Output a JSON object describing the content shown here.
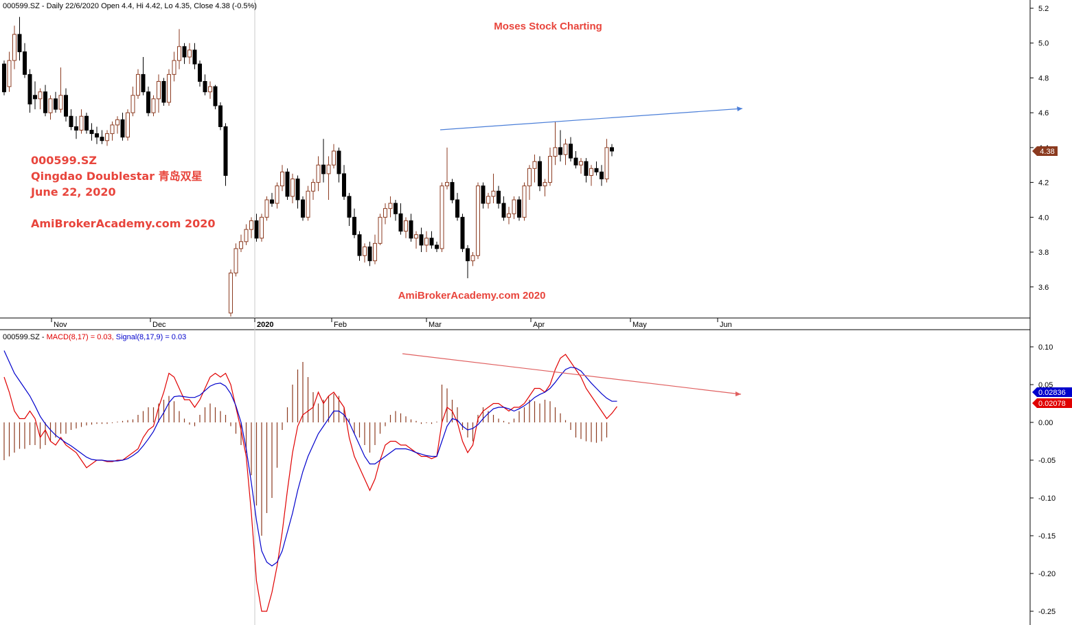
{
  "price_header": "000599.SZ - Daily 22/6/2020 Open 4.4, Hi 4.42, Lo 4.35, Close 4.38 (-0.5%)",
  "macd_header": {
    "prefix": "000599.SZ - ",
    "macd": "MACD(8,17) = 0.03,",
    "signal": "Signal(8,17,9) = 0.03"
  },
  "watermark_top": "Moses Stock Charting",
  "watermark_mid": "AmiBrokerAcademy.com  2020",
  "annotation": {
    "ticker": "000599.SZ",
    "company": "Qingdao Doublestar 青岛双星",
    "date": "June 22, 2020",
    "site": "AmiBrokerAcademy.com  2020"
  },
  "last_price_label": "4.38",
  "macd_value_labels": {
    "signal": "0.02836",
    "macd": "0.02078"
  },
  "colors": {
    "up_candle": "#8b3a1f",
    "down_candle": "#000000",
    "macd_line": "#e00000",
    "signal_line": "#0000cc",
    "histogram": "#8b3a1f",
    "title_red": "#e8453c",
    "trend_blue": "#4a7ed8",
    "trend_red": "#e06060"
  },
  "chart_data": [
    {
      "type": "candlestick",
      "title": "000599.SZ - Daily 22/6/2020",
      "x_ticks": [
        "Nov",
        "Dec",
        "2020",
        "Feb",
        "Mar",
        "Apr",
        "May",
        "Jun"
      ],
      "y_ticks": [
        "3.6",
        "3.8",
        "4.0",
        "4.2",
        "4.4",
        "4.6",
        "4.8",
        "5.0",
        "5.2"
      ],
      "ylim": [
        3.4,
        5.2
      ],
      "last": {
        "open": 4.4,
        "high": 4.42,
        "low": 4.35,
        "close": 4.38,
        "change_pct": -0.5
      },
      "ohlc": [
        [
          4.88,
          4.9,
          4.7,
          4.72
        ],
        [
          4.75,
          4.95,
          4.72,
          4.9
        ],
        [
          4.9,
          5.1,
          4.85,
          5.05
        ],
        [
          5.05,
          5.15,
          4.9,
          4.95
        ],
        [
          4.95,
          5.0,
          4.8,
          4.82
        ],
        [
          4.82,
          4.85,
          4.6,
          4.65
        ],
        [
          4.7,
          4.78,
          4.62,
          4.68
        ],
        [
          4.68,
          4.74,
          4.62,
          4.72
        ],
        [
          4.72,
          4.76,
          4.58,
          4.6
        ],
        [
          4.6,
          4.7,
          4.56,
          4.68
        ],
        [
          4.68,
          4.72,
          4.6,
          4.62
        ],
        [
          4.62,
          4.86,
          4.6,
          4.7
        ],
        [
          4.7,
          4.74,
          4.55,
          4.58
        ],
        [
          4.58,
          4.62,
          4.5,
          4.52
        ],
        [
          4.52,
          4.58,
          4.45,
          4.5
        ],
        [
          4.5,
          4.62,
          4.48,
          4.58
        ],
        [
          4.58,
          4.6,
          4.48,
          4.5
        ],
        [
          4.5,
          4.54,
          4.44,
          4.48
        ],
        [
          4.48,
          4.52,
          4.42,
          4.46
        ],
        [
          4.46,
          4.5,
          4.42,
          4.44
        ],
        [
          4.44,
          4.5,
          4.41,
          4.48
        ],
        [
          4.48,
          4.55,
          4.44,
          4.53
        ],
        [
          4.53,
          4.58,
          4.48,
          4.56
        ],
        [
          4.56,
          4.6,
          4.44,
          4.46
        ],
        [
          4.46,
          4.62,
          4.44,
          4.6
        ],
        [
          4.6,
          4.75,
          4.58,
          4.7
        ],
        [
          4.7,
          4.85,
          4.68,
          4.82
        ],
        [
          4.82,
          4.92,
          4.7,
          4.72
        ],
        [
          4.72,
          4.75,
          4.58,
          4.6
        ],
        [
          4.6,
          4.7,
          4.58,
          4.68
        ],
        [
          4.68,
          4.82,
          4.6,
          4.78
        ],
        [
          4.78,
          4.8,
          4.64,
          4.66
        ],
        [
          4.66,
          4.85,
          4.64,
          4.82
        ],
        [
          4.82,
          4.95,
          4.78,
          4.9
        ],
        [
          4.9,
          5.08,
          4.85,
          4.98
        ],
        [
          4.98,
          5.0,
          4.88,
          4.92
        ],
        [
          4.92,
          5.0,
          4.88,
          4.96
        ],
        [
          4.96,
          5.0,
          4.85,
          4.88
        ],
        [
          4.88,
          4.9,
          4.75,
          4.78
        ],
        [
          4.78,
          4.82,
          4.7,
          4.72
        ],
        [
          4.72,
          4.78,
          4.68,
          4.75
        ],
        [
          4.75,
          4.76,
          4.62,
          4.64
        ],
        [
          4.64,
          4.66,
          4.5,
          4.52
        ],
        [
          4.52,
          4.54,
          4.18,
          4.24
        ],
        [
          3.45,
          3.7,
          3.43,
          3.68
        ],
        [
          3.68,
          3.85,
          3.66,
          3.82
        ],
        [
          3.82,
          3.9,
          3.8,
          3.86
        ],
        [
          3.86,
          3.96,
          3.84,
          3.93
        ],
        [
          3.93,
          4.0,
          3.88,
          3.98
        ],
        [
          3.98,
          4.02,
          3.86,
          3.88
        ],
        [
          3.88,
          4.02,
          3.86,
          4.0
        ],
        [
          4.0,
          4.12,
          3.98,
          4.1
        ],
        [
          4.1,
          4.14,
          4.06,
          4.08
        ],
        [
          4.08,
          4.2,
          4.05,
          4.18
        ],
        [
          4.18,
          4.3,
          4.15,
          4.26
        ],
        [
          4.26,
          4.28,
          4.1,
          4.12
        ],
        [
          4.12,
          4.25,
          4.08,
          4.22
        ],
        [
          4.22,
          4.24,
          4.05,
          4.1
        ],
        [
          4.1,
          4.12,
          3.98,
          4.0
        ],
        [
          4.0,
          4.18,
          3.98,
          4.15
        ],
        [
          4.15,
          4.22,
          4.1,
          4.2
        ],
        [
          4.2,
          4.35,
          4.15,
          4.3
        ],
        [
          4.3,
          4.45,
          4.2,
          4.25
        ],
        [
          4.25,
          4.35,
          4.1,
          4.3
        ],
        [
          4.3,
          4.42,
          4.28,
          4.38
        ],
        [
          4.38,
          4.4,
          4.2,
          4.25
        ],
        [
          4.25,
          4.3,
          4.1,
          4.12
        ],
        [
          4.12,
          4.14,
          3.95,
          4.0
        ],
        [
          4.0,
          4.05,
          3.88,
          3.9
        ],
        [
          3.9,
          3.92,
          3.75,
          3.78
        ],
        [
          3.78,
          3.85,
          3.74,
          3.83
        ],
        [
          3.83,
          3.86,
          3.72,
          3.75
        ],
        [
          3.75,
          3.9,
          3.73,
          3.85
        ],
        [
          3.85,
          4.02,
          3.84,
          4.0
        ],
        [
          4.0,
          4.08,
          3.96,
          4.05
        ],
        [
          4.05,
          4.12,
          4.0,
          4.08
        ],
        [
          4.08,
          4.1,
          3.98,
          4.02
        ],
        [
          4.02,
          4.08,
          3.9,
          3.92
        ],
        [
          3.92,
          4.0,
          3.88,
          3.98
        ],
        [
          3.98,
          4.02,
          3.86,
          3.88
        ],
        [
          3.88,
          3.92,
          3.82,
          3.9
        ],
        [
          3.9,
          3.94,
          3.8,
          3.84
        ],
        [
          3.84,
          3.92,
          3.8,
          3.88
        ],
        [
          3.88,
          3.92,
          3.82,
          3.84
        ],
        [
          3.84,
          3.86,
          3.8,
          3.82
        ],
        [
          3.82,
          4.2,
          3.8,
          4.18
        ],
        [
          4.18,
          4.4,
          4.16,
          4.2
        ],
        [
          4.2,
          4.22,
          4.08,
          4.1
        ],
        [
          4.1,
          4.14,
          3.98,
          4.0
        ],
        [
          4.0,
          4.02,
          3.8,
          3.82
        ],
        [
          3.82,
          3.84,
          3.65,
          3.75
        ],
        [
          3.75,
          3.8,
          3.72,
          3.78
        ],
        [
          3.78,
          4.2,
          3.76,
          4.18
        ],
        [
          4.18,
          4.2,
          4.05,
          4.08
        ],
        [
          4.08,
          4.14,
          4.05,
          4.12
        ],
        [
          4.12,
          4.25,
          4.08,
          4.15
        ],
        [
          4.15,
          4.18,
          4.05,
          4.08
        ],
        [
          4.08,
          4.12,
          3.98,
          4.0
        ],
        [
          4.0,
          4.06,
          3.96,
          4.02
        ],
        [
          4.02,
          4.12,
          3.99,
          4.1
        ],
        [
          4.1,
          4.12,
          3.98,
          4.0
        ],
        [
          4.0,
          4.2,
          3.98,
          4.18
        ],
        [
          4.18,
          4.3,
          4.1,
          4.28
        ],
        [
          4.28,
          4.36,
          4.2,
          4.32
        ],
        [
          4.32,
          4.35,
          4.15,
          4.18
        ],
        [
          4.18,
          4.22,
          4.12,
          4.2
        ],
        [
          4.2,
          4.4,
          4.18,
          4.35
        ],
        [
          4.35,
          4.55,
          4.3,
          4.4
        ],
        [
          4.4,
          4.5,
          4.32,
          4.36
        ],
        [
          4.36,
          4.45,
          4.3,
          4.42
        ],
        [
          4.42,
          4.46,
          4.32,
          4.34
        ],
        [
          4.34,
          4.38,
          4.28,
          4.3
        ],
        [
          4.3,
          4.34,
          4.25,
          4.32
        ],
        [
          4.32,
          4.34,
          4.2,
          4.24
        ],
        [
          4.24,
          4.3,
          4.18,
          4.28
        ],
        [
          4.28,
          4.32,
          4.24,
          4.26
        ],
        [
          4.26,
          4.3,
          4.18,
          4.22
        ],
        [
          4.22,
          4.45,
          4.2,
          4.4
        ],
        [
          4.4,
          4.42,
          4.35,
          4.38
        ]
      ]
    },
    {
      "type": "line",
      "title": "MACD(8,17) and Signal(8,17,9)",
      "y_ticks": [
        "0.10",
        "0.05",
        "0.00",
        "-0.05",
        "-0.10",
        "-0.15",
        "-0.20",
        "-0.25"
      ],
      "ylim": [
        -0.26,
        0.11
      ],
      "series": [
        {
          "name": "MACD(8,17)",
          "values": [
            0.06,
            0.04,
            0.015,
            0.005,
            0.005,
            0.015,
            0.005,
            -0.02,
            -0.01,
            -0.025,
            -0.03,
            -0.02,
            -0.03,
            -0.035,
            -0.04,
            -0.05,
            -0.06,
            -0.055,
            -0.05,
            -0.05,
            -0.052,
            -0.052,
            -0.05,
            -0.05,
            -0.045,
            -0.04,
            -0.035,
            -0.02,
            -0.01,
            -0.005,
            0.02,
            0.04,
            0.065,
            0.06,
            0.045,
            0.03,
            0.03,
            0.02,
            0.03,
            0.045,
            0.06,
            0.065,
            0.06,
            0.065,
            0.05,
            0.02,
            -0.01,
            -0.045,
            -0.12,
            -0.21,
            -0.25,
            -0.25,
            -0.225,
            -0.19,
            -0.145,
            -0.09,
            -0.04,
            -0.005,
            0.01,
            0.015,
            0.02,
            0.04,
            0.025,
            0.035,
            0.04,
            0.03,
            0.02,
            -0.02,
            -0.045,
            -0.06,
            -0.075,
            -0.09,
            -0.075,
            -0.05,
            -0.03,
            -0.025,
            -0.025,
            -0.03,
            -0.03,
            -0.035,
            -0.04,
            -0.045,
            -0.045,
            -0.048,
            -0.045,
            0.0,
            0.02,
            0.015,
            0.0,
            -0.025,
            -0.04,
            -0.03,
            0.005,
            0.015,
            0.02,
            0.025,
            0.025,
            0.02,
            0.015,
            0.02,
            0.02,
            0.025,
            0.035,
            0.045,
            0.045,
            0.04,
            0.05,
            0.07,
            0.085,
            0.09,
            0.08,
            0.07,
            0.06,
            0.045,
            0.035,
            0.025,
            0.015,
            0.005,
            0.012,
            0.021
          ]
        },
        {
          "name": "Signal(8,17,9)",
          "values": [
            0.095,
            0.08,
            0.065,
            0.055,
            0.045,
            0.035,
            0.022,
            0.008,
            -0.002,
            -0.01,
            -0.017,
            -0.022,
            -0.027,
            -0.031,
            -0.036,
            -0.041,
            -0.046,
            -0.049,
            -0.05,
            -0.05,
            -0.051,
            -0.051,
            -0.051,
            -0.05,
            -0.048,
            -0.044,
            -0.039,
            -0.031,
            -0.022,
            -0.012,
            0.002,
            0.013,
            0.026,
            0.034,
            0.035,
            0.034,
            0.033,
            0.033,
            0.036,
            0.042,
            0.048,
            0.051,
            0.052,
            0.048,
            0.038,
            0.022,
            0.0,
            -0.035,
            -0.08,
            -0.13,
            -0.17,
            -0.185,
            -0.19,
            -0.185,
            -0.17,
            -0.145,
            -0.12,
            -0.09,
            -0.065,
            -0.045,
            -0.03,
            -0.015,
            -0.005,
            0.005,
            0.015,
            0.015,
            0.01,
            0.0,
            -0.015,
            -0.03,
            -0.045,
            -0.055,
            -0.055,
            -0.05,
            -0.045,
            -0.04,
            -0.035,
            -0.035,
            -0.035,
            -0.037,
            -0.04,
            -0.042,
            -0.044,
            -0.045,
            -0.045,
            -0.025,
            -0.005,
            0.005,
            0.003,
            -0.005,
            -0.01,
            -0.008,
            -0.003,
            0.005,
            0.012,
            0.018,
            0.02,
            0.02,
            0.018,
            0.015,
            0.018,
            0.022,
            0.027,
            0.033,
            0.037,
            0.04,
            0.045,
            0.053,
            0.062,
            0.07,
            0.073,
            0.072,
            0.068,
            0.06,
            0.052,
            0.045,
            0.038,
            0.032,
            0.028,
            0.028
          ]
        }
      ],
      "histogram": [
        -0.05,
        -0.045,
        -0.04,
        -0.035,
        -0.035,
        -0.03,
        -0.03,
        -0.035,
        -0.03,
        -0.025,
        -0.02,
        -0.015,
        -0.015,
        -0.01,
        -0.008,
        -0.006,
        -0.004,
        -0.003,
        -0.002,
        -0.002,
        -0.002,
        -0.001,
        0.001,
        0.002,
        0.003,
        0.004,
        0.01,
        0.015,
        0.02,
        0.02,
        0.025,
        0.03,
        0.035,
        0.028,
        0.015,
        0.005,
        -0.003,
        -0.005,
        0.01,
        0.02,
        0.025,
        0.02,
        0.015,
        0.01,
        -0.005,
        -0.015,
        -0.03,
        -0.04,
        -0.07,
        -0.11,
        -0.15,
        -0.12,
        -0.1,
        -0.06,
        -0.01,
        0.02,
        0.05,
        0.07,
        0.08,
        0.06,
        0.04,
        0.025,
        0.03,
        0.035,
        0.038,
        0.035,
        0.02,
        0.005,
        -0.015,
        -0.02,
        -0.03,
        -0.04,
        -0.03,
        -0.015,
        -0.005,
        0.01,
        0.015,
        0.012,
        0.008,
        0.004,
        0.002,
        -0.002,
        -0.001,
        -0.002,
        0.001,
        0.05,
        0.045,
        0.03,
        0.02,
        -0.01,
        -0.02,
        -0.025,
        0.01,
        0.02,
        0.015,
        0.01,
        0.005,
        0.002,
        -0.002,
        0.005,
        0.015,
        0.02,
        0.03,
        0.028,
        0.025,
        0.03,
        0.028,
        0.02,
        0.012,
        0.003,
        -0.01,
        -0.02,
        -0.022,
        -0.025,
        -0.026,
        -0.027,
        -0.025,
        -0.02
      ]
    }
  ]
}
